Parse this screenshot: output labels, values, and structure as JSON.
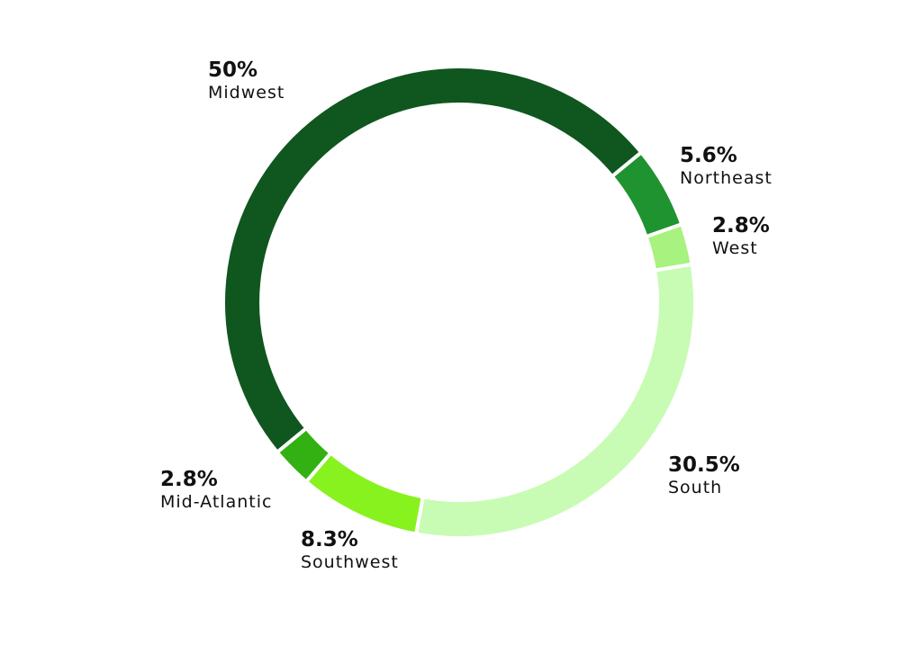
{
  "chart_data": {
    "type": "donut",
    "categories": [
      "Northeast",
      "West",
      "South",
      "Southwest",
      "Mid-Atlantic",
      "Midwest"
    ],
    "values": [
      5.6,
      2.8,
      30.5,
      8.3,
      2.8,
      50
    ],
    "value_labels": [
      "5.6%",
      "2.8%",
      "30.5%",
      "8.3%",
      "2.8%",
      "50%"
    ],
    "colors": [
      "#1f9330",
      "#a8f27f",
      "#c8fcb4",
      "#88f21f",
      "#33b012",
      "#10561f"
    ]
  }
}
